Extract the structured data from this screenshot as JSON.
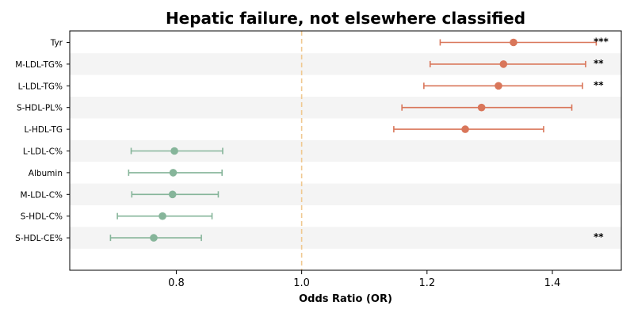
{
  "chart_data": {
    "type": "forest",
    "title": "Hepatic failure, not elsewhere classified",
    "xlabel": "Odds Ratio (OR)",
    "xlim": [
      0.63,
      1.51
    ],
    "xticks": [
      0.8,
      1.0,
      1.2,
      1.4
    ],
    "reference_line": 1.0,
    "colors": {
      "positive": "#D9765A",
      "negative": "#86B59A",
      "reference": "#F0C890",
      "band": "#F4F4F4"
    },
    "rows": [
      {
        "name": "Tyr",
        "or": 1.338,
        "lo": 1.221,
        "hi": 1.47,
        "sig": "***"
      },
      {
        "name": "M-LDL-TG%",
        "or": 1.322,
        "lo": 1.205,
        "hi": 1.453,
        "sig": "**"
      },
      {
        "name": "L-LDL-TG%",
        "or": 1.314,
        "lo": 1.195,
        "hi": 1.448,
        "sig": "**"
      },
      {
        "name": "S-HDL-PL%",
        "or": 1.287,
        "lo": 1.16,
        "hi": 1.431,
        "sig": ""
      },
      {
        "name": "L-HDL-TG",
        "or": 1.261,
        "lo": 1.147,
        "hi": 1.386,
        "sig": ""
      },
      {
        "name": "L-LDL-C%",
        "or": 0.797,
        "lo": 0.728,
        "hi": 0.874,
        "sig": ""
      },
      {
        "name": "Albumin",
        "or": 0.795,
        "lo": 0.724,
        "hi": 0.873,
        "sig": ""
      },
      {
        "name": "M-LDL-C%",
        "or": 0.794,
        "lo": 0.729,
        "hi": 0.867,
        "sig": ""
      },
      {
        "name": "S-HDL-C%",
        "or": 0.778,
        "lo": 0.706,
        "hi": 0.857,
        "sig": ""
      },
      {
        "name": "S-HDL-CE%",
        "or": 0.764,
        "lo": 0.695,
        "hi": 0.84,
        "sig": "**"
      }
    ]
  }
}
